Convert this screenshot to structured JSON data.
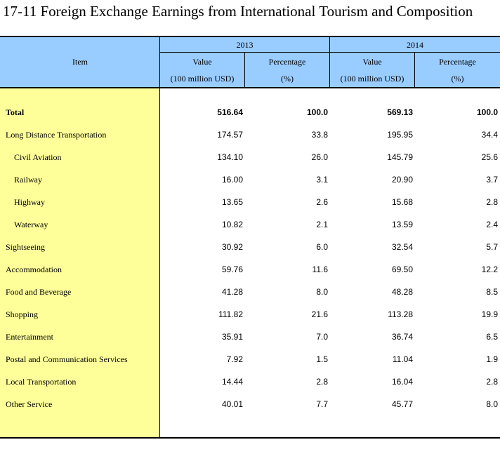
{
  "title": "17-11  Foreign Exchange Earnings from International Tourism and Composition",
  "header": {
    "item": "Item",
    "years": [
      "2013",
      "2014"
    ],
    "value_label": "Value",
    "value_unit": "(100 million USD)",
    "pct_label": "Percentage",
    "pct_unit": "(%)"
  },
  "rows": [
    {
      "item": "Total",
      "v2013": "516.64",
      "p2013": "100.0",
      "v2014": "569.13",
      "p2014": "100.0",
      "bold": true,
      "indent": false
    },
    {
      "item": "Long Distance Transportation",
      "v2013": "174.57",
      "p2013": "33.8",
      "v2014": "195.95",
      "p2014": "34.4",
      "bold": false,
      "indent": false
    },
    {
      "item": "Civil Aviation",
      "v2013": "134.10",
      "p2013": "26.0",
      "v2014": "145.79",
      "p2014": "25.6",
      "bold": false,
      "indent": true
    },
    {
      "item": "Railway",
      "v2013": "16.00",
      "p2013": "3.1",
      "v2014": "20.90",
      "p2014": "3.7",
      "bold": false,
      "indent": true
    },
    {
      "item": "Highway",
      "v2013": "13.65",
      "p2013": "2.6",
      "v2014": "15.68",
      "p2014": "2.8",
      "bold": false,
      "indent": true
    },
    {
      "item": "Waterway",
      "v2013": "10.82",
      "p2013": "2.1",
      "v2014": "13.59",
      "p2014": "2.4",
      "bold": false,
      "indent": true
    },
    {
      "item": "Sightseeing",
      "v2013": "30.92",
      "p2013": "6.0",
      "v2014": "32.54",
      "p2014": "5.7",
      "bold": false,
      "indent": false
    },
    {
      "item": "Accommodation",
      "v2013": "59.76",
      "p2013": "11.6",
      "v2014": "69.50",
      "p2014": "12.2",
      "bold": false,
      "indent": false
    },
    {
      "item": "Food and Beverage",
      "v2013": "41.28",
      "p2013": "8.0",
      "v2014": "48.28",
      "p2014": "8.5",
      "bold": false,
      "indent": false
    },
    {
      "item": "Shopping",
      "v2013": "111.82",
      "p2013": "21.6",
      "v2014": "113.28",
      "p2014": "19.9",
      "bold": false,
      "indent": false
    },
    {
      "item": "Entertainment",
      "v2013": "35.91",
      "p2013": "7.0",
      "v2014": "36.74",
      "p2014": "6.5",
      "bold": false,
      "indent": false
    },
    {
      "item": "Postal and Communication Services",
      "v2013": "7.92",
      "p2013": "1.5",
      "v2014": "11.04",
      "p2014": "1.9",
      "bold": false,
      "indent": false
    },
    {
      "item": "Local Transportation",
      "v2013": "14.44",
      "p2013": "2.8",
      "v2014": "16.04",
      "p2014": "2.8",
      "bold": false,
      "indent": false
    },
    {
      "item": "Other Service",
      "v2013": "40.01",
      "p2013": "7.7",
      "v2014": "45.77",
      "p2014": "8.0",
      "bold": false,
      "indent": false
    }
  ],
  "colors": {
    "header_bg": "#99ccff",
    "item_col_bg": "#ffff99",
    "text": "#000000"
  }
}
